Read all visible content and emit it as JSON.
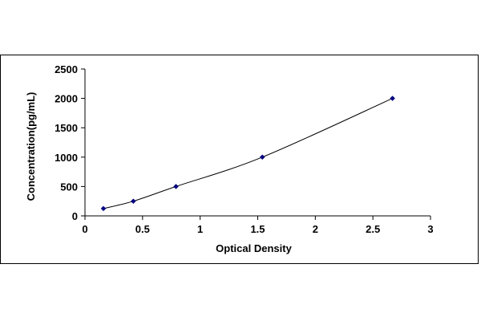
{
  "chart_data": {
    "type": "scatter",
    "title": "",
    "xlabel": "Optical Density",
    "ylabel": "Concentration(pg/mL)",
    "xlim": [
      0,
      3
    ],
    "ylim": [
      0,
      2500
    ],
    "xticks": [
      0,
      0.5,
      1,
      1.5,
      2,
      2.5,
      3
    ],
    "yticks": [
      0,
      500,
      1000,
      1500,
      2000,
      2500
    ],
    "xtick_labels": [
      "0",
      "0.5",
      "1",
      "1.5",
      "2",
      "2.5",
      "3"
    ],
    "ytick_labels": [
      "0",
      "500",
      "1000",
      "1500",
      "2000",
      "2500"
    ],
    "grid": false,
    "legend": "none",
    "series": [
      {
        "x": [
          0.16,
          0.42,
          0.79,
          1.54,
          2.67
        ],
        "y": [
          125,
          250,
          500,
          1000,
          2000
        ],
        "marker": "diamond",
        "color": "#000080",
        "fitted_curve": true,
        "line_color": "#000000"
      }
    ]
  }
}
